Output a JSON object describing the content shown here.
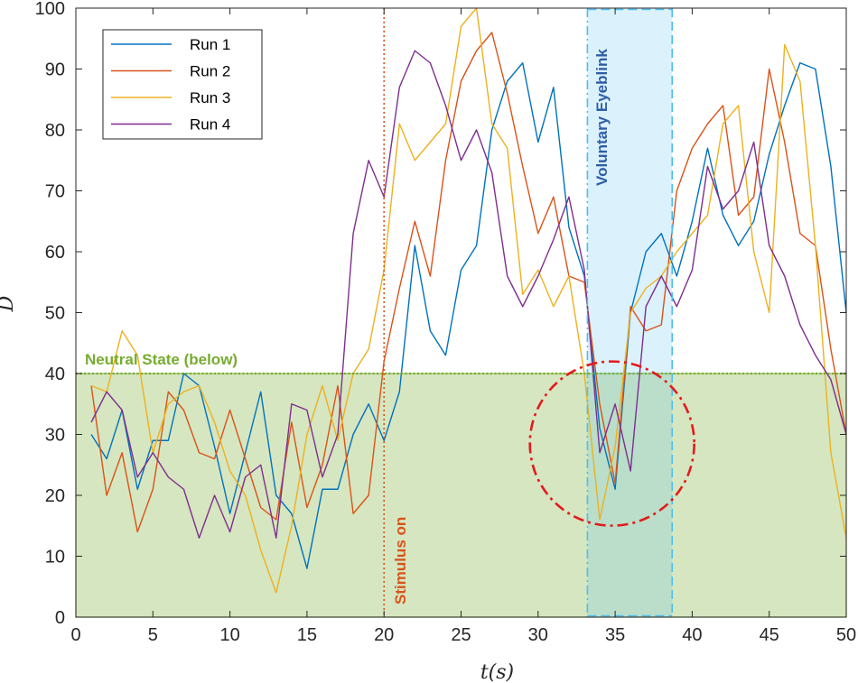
{
  "chart_data": {
    "type": "line",
    "title": "",
    "xlabel": "t(s)",
    "ylabel": "D",
    "xlim": [
      0,
      50
    ],
    "ylim": [
      0,
      100
    ],
    "xticks": [
      "0",
      "5",
      "10",
      "15",
      "20",
      "25",
      "30",
      "35",
      "40",
      "45",
      "50"
    ],
    "yticks": [
      "0",
      "10",
      "20",
      "30",
      "40",
      "50",
      "60",
      "70",
      "80",
      "90",
      "100"
    ],
    "grid": false,
    "legend": {
      "position": "top-left",
      "entries": [
        "Run 1",
        "Run 2",
        "Run 3",
        "Run 4"
      ]
    },
    "x": [
      1,
      2,
      3,
      4,
      5,
      6,
      7,
      8,
      9,
      10,
      11,
      12,
      13,
      14,
      15,
      16,
      17,
      18,
      19,
      20,
      21,
      22,
      23,
      24,
      25,
      26,
      27,
      28,
      29,
      30,
      31,
      32,
      33,
      34,
      35,
      36,
      37,
      38,
      39,
      40,
      41,
      42,
      43,
      44,
      45,
      46,
      47,
      48,
      49,
      50
    ],
    "series": [
      {
        "name": "Run 1",
        "color": "#0072BD",
        "values": [
          30,
          26,
          34,
          21,
          29,
          29,
          40,
          38,
          28,
          17,
          27,
          37,
          20,
          17,
          8,
          21,
          21,
          30,
          35,
          29,
          37,
          61,
          47,
          43,
          57,
          61,
          80,
          88,
          91,
          78,
          87,
          64,
          56,
          31,
          21,
          50,
          60,
          63,
          56,
          65,
          77,
          66,
          61,
          65,
          76,
          84,
          91,
          90,
          74,
          50
        ]
      },
      {
        "name": "Run 2",
        "color": "#D95319",
        "values": [
          38,
          20,
          27,
          14,
          21,
          37,
          34,
          27,
          26,
          34,
          26,
          18,
          16,
          32,
          18,
          25,
          38,
          17,
          20,
          42,
          54,
          65,
          56,
          75,
          88,
          93,
          96,
          86,
          74,
          63,
          69,
          56,
          55,
          35,
          22,
          51,
          47,
          48,
          70,
          77,
          81,
          84,
          66,
          69,
          90,
          78,
          63,
          61,
          44,
          30
        ]
      },
      {
        "name": "Run 3",
        "color": "#EDB120",
        "values": [
          38,
          37,
          47,
          43,
          27,
          35,
          37,
          38,
          32,
          24,
          20,
          11,
          4,
          15,
          30,
          38,
          29,
          40,
          44,
          57,
          81,
          75,
          78,
          81,
          97,
          100,
          81,
          77,
          53,
          57,
          51,
          56,
          40,
          16,
          28,
          50,
          54,
          56,
          60,
          63,
          66,
          81,
          84,
          60,
          50,
          94,
          88,
          61,
          27,
          13
        ]
      },
      {
        "name": "Run 4",
        "color": "#7E2F8E",
        "values": [
          32,
          37,
          34,
          23,
          27,
          23,
          21,
          13,
          20,
          14,
          23,
          25,
          13,
          35,
          34,
          23,
          30,
          63,
          75,
          69,
          87,
          93,
          91,
          84,
          75,
          80,
          73,
          56,
          51,
          56,
          62,
          69,
          57,
          27,
          35,
          24,
          51,
          56,
          51,
          57,
          74,
          67,
          70,
          78,
          61,
          56,
          48,
          43,
          39,
          30
        ]
      }
    ],
    "annotations": {
      "neutral_label": "Neutral State (below)",
      "neutral_threshold": 40,
      "neutral_color": "#77AC30",
      "stimulus_label": "Stimulus on",
      "stimulus_x": 20,
      "stimulus_color": "#D95319",
      "blink_label": "Voluntary Eyeblink",
      "blink_range": [
        33.2,
        38.7
      ],
      "blink_color": "#4DBEEE",
      "blink_label_color": "#2f5ea8",
      "circle_center": [
        34.8,
        28.5
      ],
      "circle_color": "#E31A1C"
    }
  }
}
